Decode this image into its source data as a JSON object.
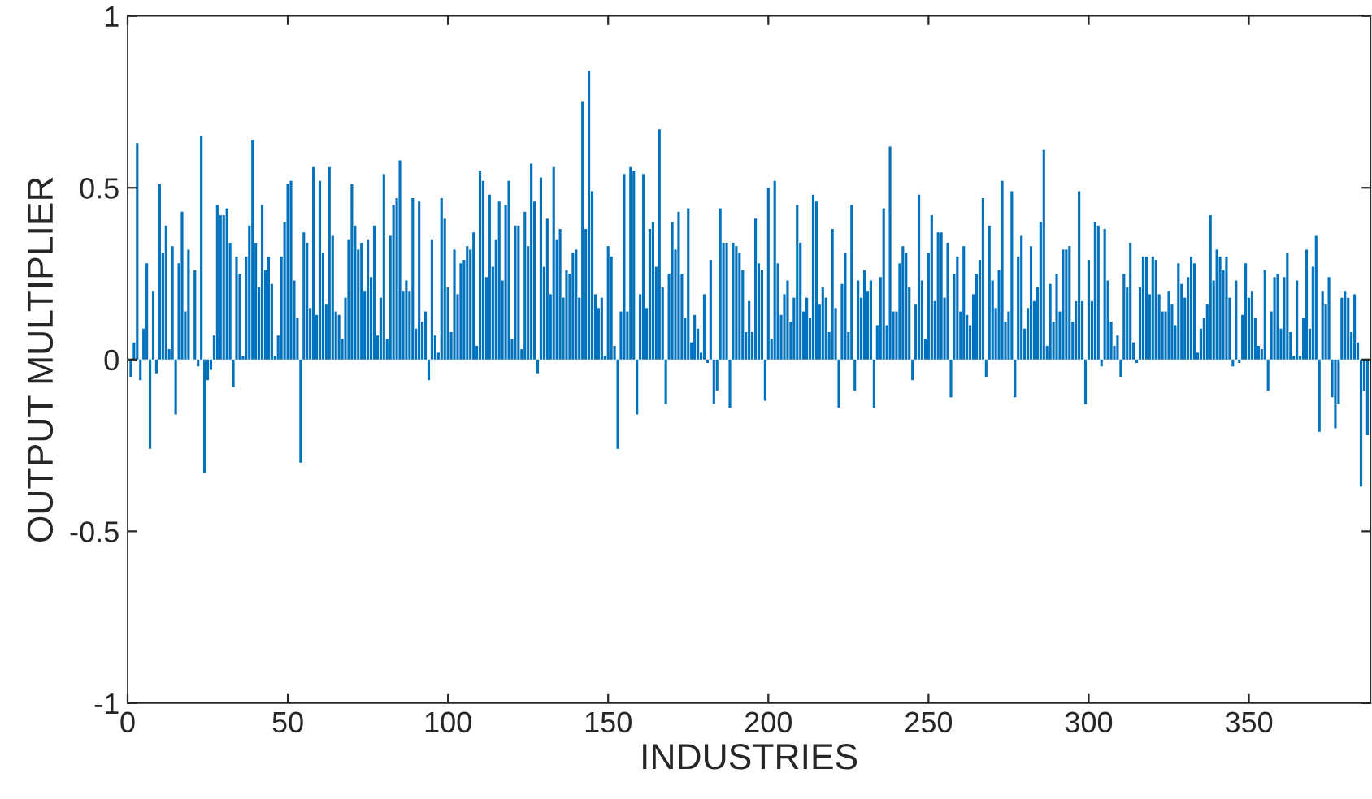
{
  "chart_data": {
    "type": "bar",
    "xlabel": "INDUSTRIES",
    "ylabel": "OUTPUT MULTIPLIER",
    "color": "#0072bd",
    "x": [
      1,
      2,
      3,
      4,
      5,
      6,
      7,
      8,
      9,
      10,
      11,
      12,
      13,
      14,
      15,
      16,
      17,
      18,
      19,
      20,
      21,
      22,
      23,
      24,
      25,
      26,
      27,
      28,
      29,
      30,
      31,
      32,
      33,
      34,
      35,
      36,
      37,
      38,
      39,
      40,
      41,
      42,
      43,
      44,
      45,
      46,
      47,
      48,
      49,
      50,
      51,
      52,
      53,
      54,
      55,
      56,
      57,
      58,
      59,
      60,
      61,
      62,
      63,
      64,
      65,
      66,
      67,
      68,
      69,
      70,
      71,
      72,
      73,
      74,
      75,
      76,
      77,
      78,
      79,
      80,
      81,
      82,
      83,
      84,
      85,
      86,
      87,
      88,
      89,
      90,
      91,
      92,
      93,
      94,
      95,
      96,
      97,
      98,
      99,
      100,
      101,
      102,
      103,
      104,
      105,
      106,
      107,
      108,
      109,
      110,
      111,
      112,
      113,
      114,
      115,
      116,
      117,
      118,
      119,
      120,
      121,
      122,
      123,
      124,
      125,
      126,
      127,
      128,
      129,
      130,
      131,
      132,
      133,
      134,
      135,
      136,
      137,
      138,
      139,
      140,
      141,
      142,
      143,
      144,
      145,
      146,
      147,
      148,
      149,
      150,
      151,
      152,
      153,
      154,
      155,
      156,
      157,
      158,
      159,
      160,
      161,
      162,
      163,
      164,
      165,
      166,
      167,
      168,
      169,
      170,
      171,
      172,
      173,
      174,
      175,
      176,
      177,
      178,
      179,
      180,
      181,
      182,
      183,
      184,
      185,
      186,
      187,
      188,
      189,
      190,
      191,
      192,
      193,
      194,
      195,
      196,
      197,
      198,
      199,
      200,
      201,
      202,
      203,
      204,
      205,
      206,
      207,
      208,
      209,
      210,
      211,
      212,
      213,
      214,
      215,
      216,
      217,
      218,
      219,
      220,
      221,
      222,
      223,
      224,
      225,
      226,
      227,
      228,
      229,
      230,
      231,
      232,
      233,
      234,
      235,
      236,
      237,
      238,
      239,
      240,
      241,
      242,
      243,
      244,
      245,
      246,
      247,
      248,
      249,
      250,
      251,
      252,
      253,
      254,
      255,
      256,
      257,
      258,
      259,
      260,
      261,
      262,
      263,
      264,
      265,
      266,
      267,
      268,
      269,
      270,
      271,
      272,
      273,
      274,
      275,
      276,
      277,
      278,
      279,
      280,
      281,
      282,
      283,
      284,
      285,
      286,
      287,
      288,
      289,
      290,
      291,
      292,
      293,
      294,
      295,
      296,
      297,
      298,
      299,
      300,
      301,
      302,
      303,
      304,
      305,
      306,
      307,
      308,
      309,
      310,
      311,
      312,
      313,
      314,
      315,
      316,
      317,
      318,
      319,
      320,
      321,
      322,
      323,
      324,
      325,
      326,
      327,
      328,
      329,
      330,
      331,
      332,
      333,
      334,
      335,
      336,
      337,
      338,
      339,
      340,
      341,
      342,
      343,
      344,
      345,
      346,
      347,
      348,
      349,
      350,
      351,
      352,
      353,
      354,
      355,
      356,
      357,
      358,
      359,
      360,
      361,
      362,
      363,
      364,
      365,
      366,
      367,
      368,
      369,
      370,
      371,
      372,
      373,
      374,
      375,
      376,
      377,
      378,
      379,
      380,
      381,
      382,
      383,
      384,
      385,
      386,
      387
    ],
    "values": [
      -0.05,
      0.05,
      0.63,
      -0.06,
      0.09,
      0.28,
      -0.26,
      0.2,
      -0.04,
      0.51,
      0.31,
      0.39,
      0.03,
      0.33,
      -0.16,
      0.28,
      0.43,
      0.14,
      0.32,
      0.0,
      0.26,
      -0.02,
      0.65,
      -0.33,
      -0.06,
      -0.03,
      0.07,
      0.45,
      0.42,
      0.42,
      0.44,
      0.34,
      -0.08,
      0.3,
      0.25,
      0.01,
      0.3,
      0.39,
      0.64,
      0.34,
      0.21,
      0.45,
      0.26,
      0.3,
      0.22,
      0.01,
      0.07,
      0.3,
      0.4,
      0.51,
      0.52,
      0.23,
      0.12,
      -0.3,
      0.37,
      0.34,
      0.15,
      0.56,
      0.13,
      0.52,
      0.31,
      0.16,
      0.56,
      0.36,
      0.14,
      0.13,
      0.06,
      0.18,
      0.35,
      0.51,
      0.39,
      0.32,
      0.34,
      0.2,
      0.35,
      0.24,
      0.39,
      0.07,
      0.18,
      0.54,
      0.06,
      0.36,
      0.45,
      0.47,
      0.58,
      0.2,
      0.23,
      0.2,
      0.47,
      0.09,
      0.46,
      0.11,
      0.14,
      -0.06,
      0.35,
      0.07,
      0.02,
      0.47,
      0.41,
      0.21,
      0.08,
      0.32,
      0.19,
      0.28,
      0.29,
      0.33,
      0.32,
      0.37,
      0.04,
      0.55,
      0.52,
      0.24,
      0.48,
      0.27,
      0.35,
      0.46,
      0.23,
      0.45,
      0.52,
      0.06,
      0.39,
      0.39,
      0.03,
      0.43,
      0.33,
      0.57,
      0.46,
      -0.04,
      0.53,
      0.27,
      0.41,
      0.19,
      0.56,
      0.35,
      0.38,
      0.18,
      0.26,
      0.25,
      0.31,
      0.32,
      0.18,
      0.75,
      0.38,
      0.84,
      0.49,
      0.19,
      0.15,
      0.18,
      0.01,
      0.33,
      0.3,
      0.04,
      -0.26,
      0.14,
      0.54,
      0.14,
      0.56,
      0.55,
      -0.16,
      0.19,
      0.54,
      0.15,
      0.38,
      0.4,
      0.27,
      0.67,
      0.21,
      -0.13,
      0.25,
      0.4,
      0.32,
      0.43,
      0.25,
      0.12,
      0.44,
      0.05,
      0.13,
      0.09,
      0.02,
      0.19,
      -0.01,
      0.29,
      -0.13,
      -0.09,
      0.44,
      0.34,
      0.34,
      -0.14,
      0.34,
      0.33,
      0.31,
      0.26,
      0.08,
      0.17,
      0.08,
      0.41,
      0.28,
      0.26,
      -0.12,
      0.5,
      0.06,
      0.52,
      0.28,
      0.13,
      0.19,
      0.23,
      0.11,
      0.18,
      0.45,
      0.34,
      0.14,
      0.18,
      0.12,
      0.48,
      0.46,
      0.16,
      0.21,
      0.18,
      0.08,
      0.38,
      0.15,
      -0.14,
      0.22,
      0.31,
      0.08,
      0.45,
      -0.09,
      0.23,
      0.18,
      0.26,
      0.2,
      0.23,
      -0.14,
      0.1,
      0.24,
      0.44,
      0.1,
      0.62,
      0.14,
      0.14,
      0.28,
      0.33,
      0.31,
      0.21,
      -0.06,
      0.16,
      0.48,
      0.23,
      0.06,
      0.31,
      0.42,
      0.17,
      0.37,
      0.37,
      0.18,
      0.34,
      -0.11,
      0.25,
      0.3,
      0.14,
      0.33,
      0.13,
      0.1,
      0.19,
      0.25,
      0.29,
      0.47,
      -0.05,
      0.39,
      0.23,
      0.15,
      0.26,
      0.52,
      0.11,
      0.14,
      0.49,
      -0.11,
      0.3,
      0.36,
      0.09,
      0.15,
      0.33,
      0.17,
      0.21,
      0.4,
      0.61,
      0.04,
      0.22,
      0.11,
      0.25,
      0.14,
      0.32,
      0.32,
      0.33,
      0.11,
      0.17,
      0.49,
      0.17,
      -0.13,
      0.29,
      0.17,
      0.4,
      0.39,
      -0.02,
      0.38,
      0.23,
      0.11,
      0.04,
      0.07,
      -0.05,
      0.25,
      0.21,
      0.34,
      0.05,
      -0.01,
      0.21,
      0.3,
      0.3,
      0.19,
      0.3,
      0.29,
      0.19,
      0.14,
      0.14,
      0.2,
      0.16,
      0.1,
      0.28,
      0.22,
      0.18,
      0.24,
      0.3,
      0.28,
      0.02,
      0.09,
      0.12,
      0.16,
      0.42,
      0.23,
      0.32,
      0.3,
      0.26,
      0.3,
      0.18,
      -0.02,
      0.23,
      -0.01,
      0.13,
      0.28,
      0.18,
      0.2,
      0.12,
      0.04,
      0.03,
      0.26,
      -0.09,
      0.14,
      0.24,
      0.25,
      0.09,
      0.24,
      0.31,
      0.08,
      0.01,
      0.23,
      0.01,
      0.12,
      0.32,
      0.09,
      0.27,
      0.36,
      -0.21,
      0.2,
      0.16,
      0.24,
      -0.11,
      -0.2,
      -0.13,
      0.18,
      0.2,
      0.18,
      0.08,
      0.19,
      0.05,
      -0.37,
      -0.09,
      -0.22
    ],
    "xlim": [
      0,
      388
    ],
    "xticks": [
      0,
      50,
      100,
      150,
      200,
      250,
      300,
      350
    ],
    "ylim": [
      -1,
      1
    ],
    "yticks": [
      -1,
      -0.5,
      0,
      0.5,
      1
    ],
    "grid": false
  }
}
